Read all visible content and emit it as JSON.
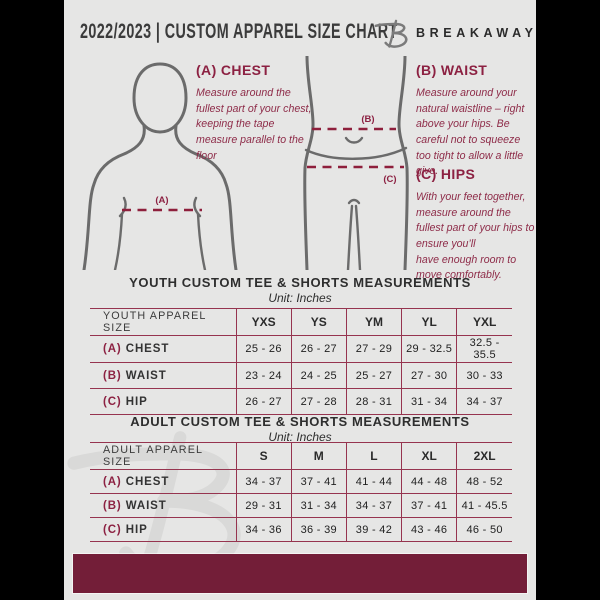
{
  "header": {
    "title": "2022/2023  |  CUSTOM APPAREL SIZE CHART",
    "brand": "BREAKAWAY"
  },
  "guide": {
    "chest_heading": "(A) CHEST",
    "chest_body": "Measure around the fullest part of your chest, keeping the tape measure parallel to the floor",
    "waist_heading": "(B) WAIST",
    "waist_body": "Measure around your natural waistline – right above your hips. Be careful not to squeeze too tight to allow a little give.",
    "hips_heading": "(C) HIPS",
    "hips_body": "With your feet together, measure around the fullest part of your hips to ensure you’ll\nhave enough room to move comfortably.",
    "marker_a": "(A)",
    "marker_b": "(B)",
    "marker_c": "(C)"
  },
  "tables": {
    "youth": {
      "title": "YOUTH CUSTOM TEE & SHORTS MEASUREMENTS",
      "unit": "Unit: Inches",
      "columns": [
        "YOUTH APPAREL SIZE",
        "YXS",
        "YS",
        "YM",
        "YL",
        "YXL"
      ],
      "rows": [
        {
          "prefix": "(A)",
          "label": "CHEST",
          "values": [
            "25 - 26",
            "26 - 27",
            "27 - 29",
            "29 - 32.5",
            "32.5 - 35.5"
          ]
        },
        {
          "prefix": "(B)",
          "label": "WAIST",
          "values": [
            "23 - 24",
            "24 - 25",
            "25 - 27",
            "27 - 30",
            "30 - 33"
          ]
        },
        {
          "prefix": "(C)",
          "label": "HIP",
          "values": [
            "26 - 27",
            "27 - 28",
            "28 - 31",
            "31 - 34",
            "34 - 37"
          ]
        }
      ]
    },
    "adult": {
      "title": "ADULT CUSTOM TEE & SHORTS MEASUREMENTS",
      "unit": "Unit: Inches",
      "columns": [
        "ADULT APPAREL SIZE",
        "S",
        "M",
        "L",
        "XL",
        "2XL"
      ],
      "rows": [
        {
          "prefix": "(A)",
          "label": "CHEST",
          "values": [
            "34 - 37",
            "37 - 41",
            "41 - 44",
            "44 - 48",
            "48 - 52"
          ]
        },
        {
          "prefix": "(B)",
          "label": "WAIST",
          "values": [
            "29 - 31",
            "31 - 34",
            "34 - 37",
            "37 - 41",
            "41 - 45.5"
          ]
        },
        {
          "prefix": "(C)",
          "label": "HIP",
          "values": [
            "34 - 36",
            "36 - 39",
            "39 - 42",
            "43 - 46",
            "46 - 50"
          ]
        }
      ]
    }
  },
  "colors": {
    "maroon_text": "#8c2142",
    "dashed_line": "#8e1f3c",
    "table_border": "#96344f",
    "footer_bar": "#731e38",
    "page_background": "#e6e6e5",
    "pillarbox": "#000000",
    "body_outline": "#6b6b6b"
  }
}
